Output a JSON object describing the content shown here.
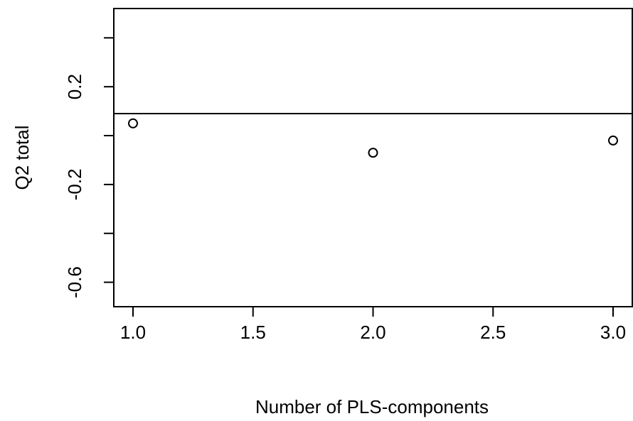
{
  "chart_data": {
    "type": "scatter",
    "title": "",
    "xlabel": "Number of PLS-components",
    "ylabel": "Q2 total",
    "xlim": [
      0.92,
      3.08
    ],
    "ylim": [
      -0.7,
      0.52
    ],
    "x_ticks": [
      1.0,
      1.5,
      2.0,
      2.5,
      3.0
    ],
    "x_tick_labels": [
      "1.0",
      "1.5",
      "2.0",
      "2.5",
      "3.0"
    ],
    "y_ticks": [
      -0.6,
      -0.4,
      -0.2,
      0.0,
      0.2,
      0.4
    ],
    "y_tick_labels": [
      "-0.6",
      "",
      "-0.2",
      "",
      "0.2",
      ""
    ],
    "grid": false,
    "legend": "none",
    "marker": "open-circle",
    "points": [
      {
        "x": 1,
        "y": 0.05
      },
      {
        "x": 2,
        "y": -0.07
      },
      {
        "x": 3,
        "y": -0.02
      }
    ],
    "reference_line": {
      "orientation": "horizontal",
      "y": 0.09
    },
    "colors": {
      "points": "#000000",
      "axes": "#000000",
      "reference_line": "#000000",
      "background": "#ffffff"
    }
  }
}
